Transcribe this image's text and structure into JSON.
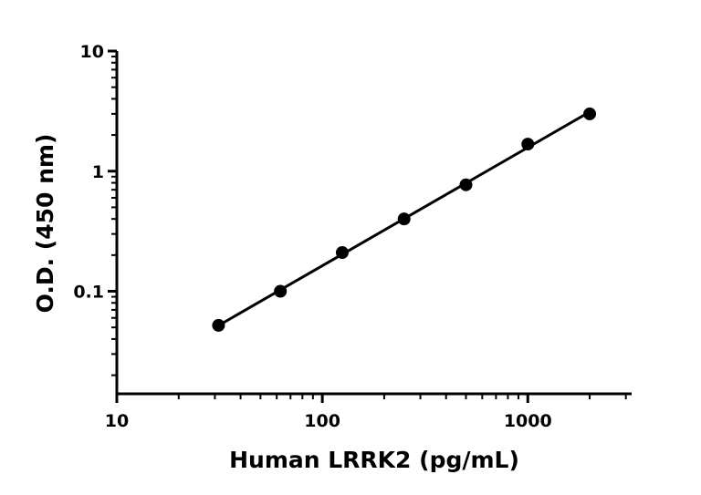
{
  "chart_data": {
    "type": "scatter",
    "title": "",
    "xlabel": "Human LRRK2 (pg/mL)",
    "ylabel": "O.D. (450 nm)",
    "xscale": "log",
    "yscale": "log",
    "xlim": [
      10,
      3200
    ],
    "ylim": [
      0.014,
      10
    ],
    "x_ticks": [
      10,
      100,
      1000
    ],
    "x_tick_labels": [
      "10",
      "100",
      "1000"
    ],
    "y_ticks": [
      0.1,
      1,
      10
    ],
    "y_tick_labels": [
      "0.1",
      "1",
      "10"
    ],
    "grid": false,
    "legend": "none",
    "fit_line": true,
    "marker_color": "#000000",
    "line_color": "#000000",
    "series": [
      {
        "x": [
          31.25,
          62.5,
          125,
          250,
          500,
          1000,
          2000
        ],
        "y": [
          0.052,
          0.1,
          0.21,
          0.4,
          0.77,
          1.68,
          3.0
        ]
      }
    ]
  }
}
